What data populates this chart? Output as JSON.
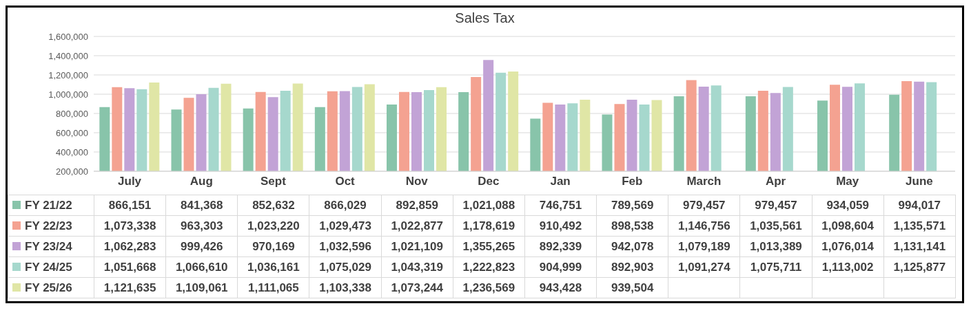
{
  "chart_data": {
    "type": "bar",
    "title": "Sales Tax",
    "categories": [
      "July",
      "Aug",
      "Sept",
      "Oct",
      "Nov",
      "Dec",
      "Jan",
      "Feb",
      "March",
      "Apr",
      "May",
      "June"
    ],
    "series": [
      {
        "name": "FY 21/22",
        "color": "#88c4aa",
        "values": [
          866151,
          841368,
          852632,
          866029,
          892859,
          1021088,
          746751,
          789569,
          979457,
          979457,
          934059,
          994017
        ],
        "value_labels": [
          "866,151",
          "841,368",
          "852,632",
          "866,029",
          "892,859",
          "1,021,088",
          "746,751",
          "789,569",
          "979,457",
          "979,457",
          "934,059",
          "994,017"
        ]
      },
      {
        "name": "FY 22/23",
        "color": "#f4a291",
        "values": [
          1073338,
          963303,
          1023220,
          1029473,
          1022877,
          1178619,
          910492,
          898538,
          1146756,
          1035561,
          1098604,
          1135571
        ],
        "value_labels": [
          "1,073,338",
          "963,303",
          "1,023,220",
          "1,029,473",
          "1,022,877",
          "1,178,619",
          "910,492",
          "898,538",
          "1,146,756",
          "1,035,561",
          "1,098,604",
          "1,135,571"
        ]
      },
      {
        "name": "FY 23/24",
        "color": "#c2a3d6",
        "values": [
          1062283,
          999426,
          970169,
          1032596,
          1021109,
          1355265,
          892339,
          942078,
          1079189,
          1013389,
          1076014,
          1131141
        ],
        "value_labels": [
          "1,062,283",
          "999,426",
          "970,169",
          "1,032,596",
          "1,021,109",
          "1,355,265",
          "892,339",
          "942,078",
          "1,079,189",
          "1,013,389",
          "1,076,014",
          "1,131,141"
        ]
      },
      {
        "name": "FY 24/25",
        "color": "#a6d8cd",
        "values": [
          1051668,
          1066610,
          1036161,
          1075029,
          1043319,
          1222823,
          904999,
          892903,
          1091274,
          1075711,
          1113002,
          1125877
        ],
        "value_labels": [
          "1,051,668",
          "1,066,610",
          "1,036,161",
          "1,075,029",
          "1,043,319",
          "1,222,823",
          "904,999",
          "892,903",
          "1,091,274",
          "1,075,711",
          "1,113,002",
          "1,125,877"
        ]
      },
      {
        "name": "FY 25/26",
        "color": "#e0e6a6",
        "values": [
          1121635,
          1109061,
          1111065,
          1103338,
          1073244,
          1236569,
          943428,
          939504,
          null,
          null,
          null,
          null
        ],
        "value_labels": [
          "1,121,635",
          "1,109,061",
          "1,111,065",
          "1,103,338",
          "1,073,244",
          "1,236,569",
          "943,428",
          "939,504",
          null,
          null,
          null,
          null
        ]
      }
    ],
    "ylim": [
      200000,
      1600000
    ],
    "yticks": [
      {
        "value": 200000,
        "label": "200,000"
      },
      {
        "value": 400000,
        "label": "400,000"
      },
      {
        "value": 600000,
        "label": "600,000"
      },
      {
        "value": 800000,
        "label": "800,000"
      },
      {
        "value": 1000000,
        "label": "1,000,000"
      },
      {
        "value": 1200000,
        "label": "1,200,000"
      },
      {
        "value": 1400000,
        "label": "1,400,000"
      },
      {
        "value": 1600000,
        "label": "1,600,000"
      }
    ],
    "grid": "y",
    "legend": "bottom left"
  }
}
